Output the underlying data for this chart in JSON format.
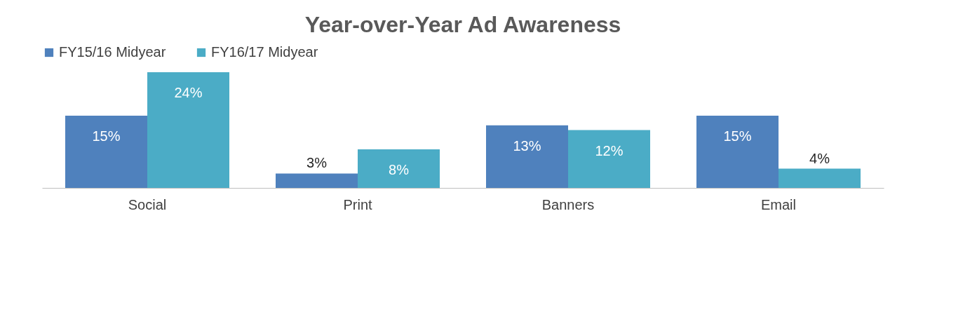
{
  "chart_data": {
    "type": "bar",
    "title": "Year-over-Year Ad Awareness",
    "categories": [
      "Social",
      "Print",
      "Banners",
      "Email"
    ],
    "series": [
      {
        "name": "FY15/16 Midyear",
        "color": "#4f81bd",
        "values": [
          15,
          3,
          13,
          15
        ],
        "value_labels": [
          "15%",
          "3%",
          "13%",
          "15%"
        ]
      },
      {
        "name": "FY16/17 Midyear",
        "color": "#4bacc6",
        "values": [
          24,
          8,
          12,
          4
        ],
        "value_labels": [
          "24%",
          "8%",
          "12%",
          "4%"
        ]
      }
    ],
    "tick_labels": "x",
    "legend": "top"
  }
}
